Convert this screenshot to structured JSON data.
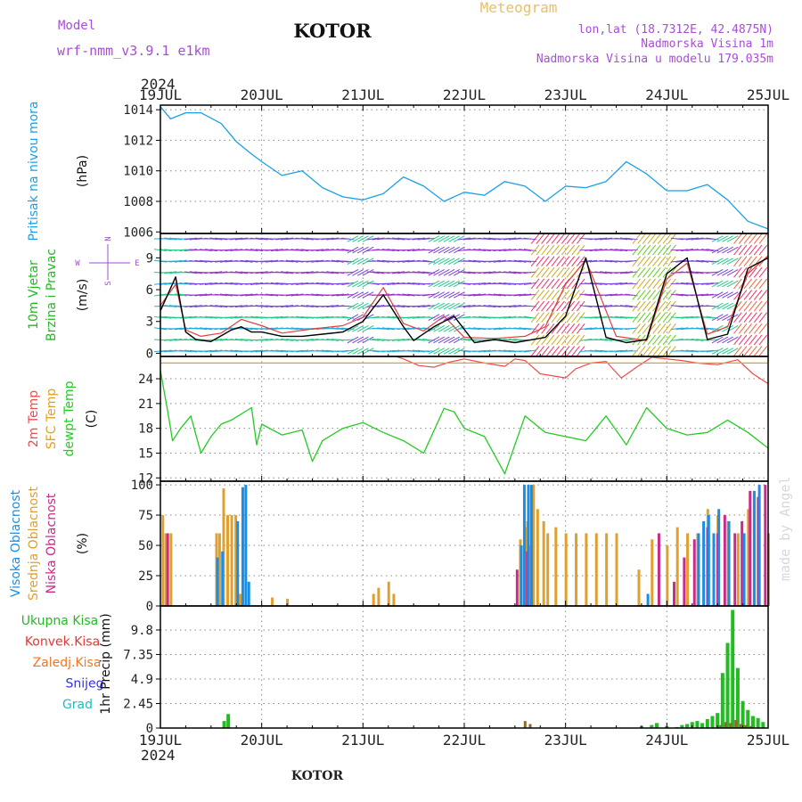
{
  "header": {
    "model_label": "Model",
    "model_value": "wrf-nmm_v3.9.1 e1km",
    "station": "KOTOR",
    "product": "Meteogram",
    "lonlat": "lon,lat (18.7312E, 42.4875N)",
    "elevation": "Nadmorska Visina 1m",
    "model_elevation": "Nadmorska Visina u modelu 179.035m",
    "year": "2024",
    "footer_station": "KOTOR",
    "watermark": "made by Angel"
  },
  "colors": {
    "pressure": "#1aa0e6",
    "temp2m": "#f04b4b",
    "sfc_temp": "#e6a020",
    "dewpoint": "#22cc22",
    "wind_speed": "#000000",
    "gust": "#e04040",
    "cloud_high": "#1a8ee6",
    "cloud_mid": "#e0a030",
    "cloud_low": "#cc2a8a",
    "precip_total": "#22bb22",
    "precip_conv": "#ee3333",
    "precip_frozen": "#ee7722",
    "precip_snow": "#3333dd",
    "precip_graupel": "#22bbbb"
  },
  "chart_data": [
    {
      "type": "line",
      "panel": "pressure",
      "ylabel_main": "Pritisak na nivou mora",
      "unit": "(hPa)",
      "x_ticks": [
        "19JUL",
        "20JUL",
        "21JUL",
        "22JUL",
        "23JUL",
        "24JUL",
        "25JUL"
      ],
      "y_ticks": [
        1006,
        1008,
        1010,
        1012,
        1014
      ],
      "ylim": [
        1005.9,
        1014.3
      ],
      "grid": true,
      "series": [
        {
          "key": "slp",
          "x": [
            0,
            0.1,
            0.25,
            0.4,
            0.6,
            0.75,
            0.9,
            1.0,
            1.2,
            1.4,
            1.6,
            1.8,
            2.0,
            2.2,
            2.4,
            2.6,
            2.8,
            3.0,
            3.2,
            3.4,
            3.6,
            3.8,
            4.0,
            4.2,
            4.4,
            4.6,
            4.8,
            5.0,
            5.2,
            5.4,
            5.6,
            5.8,
            6.0
          ],
          "y": [
            1014.2,
            1013.4,
            1013.8,
            1013.8,
            1013.1,
            1011.9,
            1011.1,
            1010.6,
            1009.7,
            1010.0,
            1008.9,
            1008.3,
            1008.1,
            1008.5,
            1009.6,
            1009.0,
            1008.0,
            1008.6,
            1008.4,
            1009.3,
            1009.0,
            1008.0,
            1009.0,
            1008.9,
            1009.3,
            1010.6,
            1009.8,
            1008.7,
            1008.7,
            1009.1,
            1008.1,
            1006.7,
            1006.2
          ]
        }
      ]
    },
    {
      "type": "line",
      "panel": "wind",
      "ylabel_main": "10m Vjetar",
      "ylabel_sub": "Brzina i Pravac",
      "unit": "(m/s)",
      "compass": [
        "W",
        "E",
        "N",
        "S"
      ],
      "y_ticks": [
        0,
        3,
        6,
        9
      ],
      "ylim": [
        -0.3,
        11.3
      ],
      "grid": true,
      "series": [
        {
          "key": "speed",
          "x": [
            0,
            0.15,
            0.25,
            0.35,
            0.5,
            0.7,
            0.8,
            0.9,
            1.0,
            1.2,
            1.4,
            1.6,
            1.8,
            2.0,
            2.2,
            2.4,
            2.5,
            2.7,
            2.9,
            3.1,
            3.3,
            3.5,
            3.8,
            4.0,
            4.2,
            4.4,
            4.6,
            4.8,
            5.0,
            5.2,
            5.4,
            5.6,
            5.8,
            6.0
          ],
          "y": [
            4.0,
            7.2,
            2.0,
            1.3,
            1.1,
            2.2,
            2.5,
            2.0,
            2.0,
            1.6,
            1.6,
            1.8,
            2.0,
            3.0,
            5.5,
            2.5,
            1.2,
            2.5,
            3.5,
            1.0,
            1.3,
            1.0,
            1.5,
            3.5,
            9.0,
            1.5,
            1.0,
            1.3,
            7.5,
            9.0,
            1.3,
            1.8,
            8.0,
            9.0
          ]
        },
        {
          "key": "gust",
          "x": [
            0,
            0.15,
            0.25,
            0.4,
            0.6,
            0.8,
            1.0,
            1.2,
            1.5,
            1.8,
            2.0,
            2.2,
            2.4,
            2.6,
            2.8,
            3.0,
            3.3,
            3.6,
            3.8,
            4.0,
            4.2,
            4.5,
            4.8,
            5.0,
            5.2,
            5.4,
            5.6,
            5.8,
            6.0
          ],
          "y": [
            4.5,
            6.5,
            2.2,
            1.6,
            1.9,
            3.2,
            2.6,
            1.9,
            2.3,
            2.6,
            3.4,
            6.2,
            2.8,
            2.1,
            3.5,
            1.5,
            1.4,
            1.6,
            2.5,
            6.5,
            8.8,
            1.6,
            1.2,
            7.0,
            8.5,
            1.8,
            2.5,
            7.5,
            9.2
          ]
        }
      ]
    },
    {
      "type": "line",
      "panel": "temperature",
      "ylabel_lines": [
        "2m Temp",
        "SFC Temp",
        "dewpt Temp"
      ],
      "unit": "(C)",
      "y_ticks": [
        12,
        15,
        18,
        21,
        24
      ],
      "ylim": [
        11.6,
        26.7
      ],
      "grid": true,
      "series": [
        {
          "key": "sfc",
          "x": [
            0,
            6
          ],
          "y": [
            25.9,
            25.9
          ]
        },
        {
          "key": "t2m",
          "x": [
            2.3,
            2.4,
            2.55,
            2.7,
            2.85,
            3.0,
            3.2,
            3.4,
            3.5,
            3.6,
            3.75,
            4.0,
            4.1,
            4.25,
            4.4,
            4.55,
            4.7,
            4.85,
            5.0,
            5.15,
            5.3,
            5.5,
            5.7,
            5.85,
            6.0
          ],
          "y": [
            26.8,
            26.4,
            25.6,
            25.4,
            26.0,
            26.4,
            25.9,
            25.5,
            26.4,
            26.2,
            24.6,
            24.1,
            25.2,
            25.9,
            26.1,
            24.1,
            25.4,
            26.6,
            26.4,
            26.2,
            25.9,
            25.7,
            26.3,
            24.6,
            23.4
          ]
        },
        {
          "key": "dewpt",
          "x": [
            0,
            0.08,
            0.12,
            0.2,
            0.3,
            0.4,
            0.5,
            0.6,
            0.7,
            0.9,
            0.95,
            1.0,
            1.2,
            1.4,
            1.5,
            1.6,
            1.8,
            2.0,
            2.2,
            2.4,
            2.6,
            2.8,
            2.9,
            3.0,
            3.2,
            3.4,
            3.5,
            3.6,
            3.8,
            4.0,
            4.2,
            4.4,
            4.6,
            4.8,
            5.0,
            5.2,
            5.4,
            5.6,
            5.8,
            6.0
          ],
          "y": [
            25.0,
            19.5,
            16.5,
            18.0,
            19.5,
            15.0,
            17.0,
            18.5,
            19.0,
            20.5,
            16.0,
            18.5,
            17.2,
            17.8,
            14.0,
            16.5,
            18.0,
            18.7,
            17.5,
            16.5,
            15.0,
            20.4,
            20.0,
            18.0,
            17.0,
            12.5,
            16.0,
            19.5,
            17.5,
            17.0,
            16.5,
            19.5,
            16.0,
            20.5,
            18.0,
            17.2,
            17.5,
            19.0,
            17.5,
            15.6
          ]
        }
      ]
    },
    {
      "type": "bar",
      "panel": "clouds",
      "ylabel_lines": [
        "Visoka Oblacnost",
        "Srednja Oblacnost",
        "Niska Oblacnost"
      ],
      "unit": "(%)",
      "y_ticks": [
        0,
        25,
        50,
        75,
        100
      ],
      "ylim": [
        0,
        103
      ],
      "grid": true,
      "series": [
        {
          "key": "high",
          "x": [
            0.55,
            0.6,
            0.75,
            0.8,
            0.83,
            0.86,
            3.55,
            3.58,
            3.62,
            3.65,
            4.8,
            5.3,
            5.35,
            5.4,
            5.45,
            5.5,
            5.6,
            5.75,
            5.85,
            5.9
          ],
          "y": [
            40,
            45,
            70,
            98,
            100,
            20,
            50,
            100,
            100,
            100,
            10,
            60,
            70,
            75,
            60,
            80,
            70,
            60,
            95,
            100
          ]
        },
        {
          "key": "mid",
          "x": [
            0.02,
            0.05,
            0.1,
            0.55,
            0.58,
            0.62,
            0.66,
            0.7,
            0.74,
            0.78,
            0.8,
            1.1,
            1.25,
            2.1,
            2.15,
            2.25,
            2.3,
            3.55,
            3.6,
            3.62,
            3.68,
            3.72,
            3.78,
            3.82,
            3.9,
            4.0,
            4.1,
            4.2,
            4.3,
            4.4,
            4.5,
            4.72,
            4.85,
            5.0,
            5.1,
            5.2,
            5.3,
            5.4,
            5.5,
            5.6,
            5.7,
            5.8,
            5.9,
            6.0
          ],
          "y": [
            75,
            60,
            60,
            60,
            60,
            97,
            75,
            75,
            75,
            10,
            10,
            7,
            6,
            10,
            15,
            20,
            10,
            55,
            65,
            70,
            100,
            80,
            70,
            60,
            65,
            60,
            60,
            60,
            60,
            60,
            60,
            30,
            55,
            50,
            65,
            60,
            60,
            80,
            75,
            70,
            60,
            80,
            75,
            60
          ]
        },
        {
          "key": "low",
          "x": [
            0.05,
            3.5,
            3.6,
            3.64,
            4.9,
            5.05,
            5.15,
            5.25,
            5.38,
            5.48,
            5.55,
            5.65,
            5.72,
            5.8,
            5.88,
            5.95
          ],
          "y": [
            60,
            30,
            45,
            50,
            60,
            20,
            40,
            55,
            65,
            60,
            75,
            60,
            70,
            95,
            90,
            100
          ]
        }
      ]
    },
    {
      "type": "bar",
      "panel": "precip",
      "ylabel_lines": [
        "Ukupna Kisa",
        "Konvek.Kisa",
        "Zaledj.Kisa",
        "Snijeg",
        "Grad"
      ],
      "unit": "1hr Precip (mm)",
      "y_ticks": [
        0,
        2.45,
        4.9,
        7.35,
        9.8
      ],
      "ylim": [
        0,
        12.2
      ],
      "grid": true,
      "series": [
        {
          "key": "total",
          "x": [
            0.63,
            0.67,
            4.75,
            4.85,
            4.9,
            5.0,
            5.1,
            5.15,
            5.2,
            5.25,
            5.3,
            5.35,
            5.4,
            5.45,
            5.5,
            5.55,
            5.6,
            5.65,
            5.7,
            5.75,
            5.8,
            5.85,
            5.9,
            5.95
          ],
          "y": [
            0.7,
            1.4,
            0.2,
            0.3,
            0.5,
            0.2,
            0.1,
            0.3,
            0.4,
            0.6,
            0.7,
            0.5,
            0.9,
            1.2,
            1.5,
            5.5,
            8.5,
            11.8,
            6.0,
            2.7,
            1.8,
            1.2,
            1.0,
            0.6
          ]
        },
        {
          "key": "frozen",
          "x": [
            3.57,
            3.62,
            5.5,
            5.55,
            5.6,
            5.65,
            5.7,
            5.75,
            5.8
          ],
          "y": [
            0.7,
            0.4,
            0.3,
            0.6,
            0.5,
            0.8,
            0.4,
            0.3,
            0.2
          ]
        }
      ]
    }
  ]
}
